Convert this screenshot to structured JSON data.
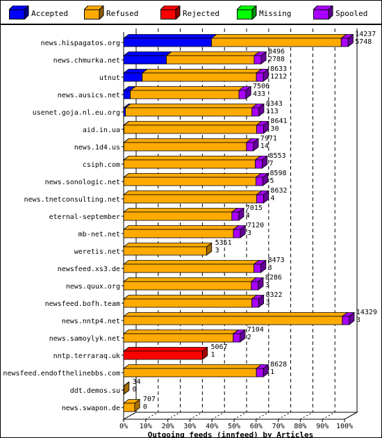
{
  "legend": [
    {
      "label": "Accepted",
      "color": "#0000ff"
    },
    {
      "label": "Refused",
      "color": "#ffaa00"
    },
    {
      "label": "Rejected",
      "color": "#ff0000"
    },
    {
      "label": "Missing",
      "color": "#00ff00"
    },
    {
      "label": "Spooled",
      "color": "#aa00ff"
    }
  ],
  "chart_data": {
    "type": "bar",
    "orientation": "horizontal",
    "stacked": true,
    "title": "Outgoing feeds (innfeed) by Articles",
    "x_ticks": [
      "0%",
      "10%",
      "20%",
      "30%",
      "40%",
      "50%",
      "60%",
      "70%",
      "80%",
      "90%",
      "100%"
    ],
    "xlim": [
      0,
      100
    ],
    "categories": [
      "news.hispagatos.org",
      "news.chmurka.net",
      "utnut",
      "news.ausics.net",
      "usenet.goja.nl.eu.org",
      "aid.in.ua",
      "news.1d4.us",
      "csiph.com",
      "news.sonologic.net",
      "news.tnetconsulting.net",
      "eternal-september",
      "mb-net.net",
      "weretis.net",
      "newsfeed.xs3.de",
      "news.quux.org",
      "newsfeed.bofh.team",
      "news.nntp4.net",
      "news.samoylyk.net",
      "nntp.terraraq.uk",
      "newsfeed.endofthelinebbs.com",
      "ddt.demos.su",
      "news.swapon.de"
    ],
    "label_top": [
      "14237",
      "8496",
      "8633",
      "7506",
      "8343",
      "8641",
      "7971",
      "8553",
      "8598",
      "8632",
      "7015",
      "7120",
      "5351",
      "8473",
      "8286",
      "8322",
      "14329",
      "7104",
      "5067",
      "8628",
      "34",
      "707"
    ],
    "label_bottom": [
      "5748",
      "2788",
      "1212",
      "433",
      "113",
      "30",
      "14",
      "7",
      "5",
      "4",
      "4",
      "3",
      "3",
      "3",
      "3",
      "3",
      "3",
      "2",
      "1",
      "1",
      "0",
      "0"
    ],
    "series": [
      {
        "name": "Accepted",
        "values": [
          40.4,
          32.8,
          14.0,
          5.8,
          1.4,
          0.3,
          0.2,
          0.1,
          0.1,
          0,
          0,
          0,
          0,
          0,
          0,
          0,
          0,
          0,
          0,
          0,
          0,
          0
        ]
      },
      {
        "name": "Refused",
        "values": [
          59.6,
          67.2,
          86.0,
          94.2,
          98.6,
          99.7,
          99.8,
          99.9,
          99.9,
          100,
          100,
          100,
          100,
          100,
          100,
          100,
          100,
          100,
          0,
          100,
          100,
          100
        ]
      },
      {
        "name": "Rejected",
        "values": [
          0,
          0,
          0,
          0,
          0,
          0,
          0,
          0,
          0,
          0,
          0,
          0,
          0,
          0,
          0,
          0,
          0,
          0,
          100,
          0,
          0,
          0
        ]
      },
      {
        "name": "Missing",
        "values": [
          0,
          0,
          0,
          0,
          0,
          0,
          0,
          0,
          0,
          0,
          0,
          0,
          0,
          0,
          0,
          0,
          0,
          0,
          0,
          0,
          0,
          0
        ]
      }
    ],
    "bar_length_pct": [
      98.5,
      59.1,
      60.1,
      52.2,
      58.1,
      60.2,
      55.6,
      59.6,
      59.9,
      60.2,
      49.0,
      49.7,
      37.6,
      59.0,
      57.8,
      58.0,
      99.0,
      49.6,
      35.7,
      60.1,
      0.2,
      5.0
    ],
    "spooled_present": [
      true,
      true,
      true,
      true,
      true,
      true,
      true,
      true,
      true,
      true,
      true,
      true,
      false,
      true,
      true,
      true,
      true,
      true,
      false,
      true,
      false,
      false
    ]
  }
}
